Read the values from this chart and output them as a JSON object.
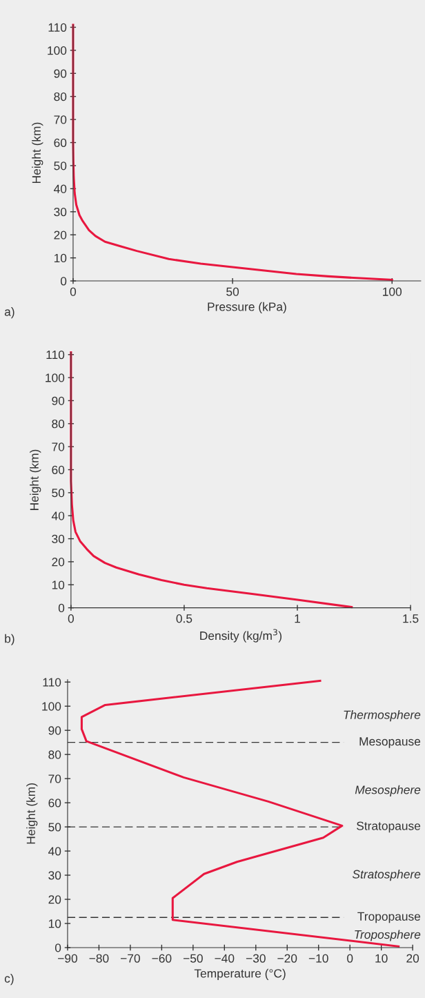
{
  "chart_data": [
    {
      "type": "line",
      "xlabel": "Pressure (kPa)",
      "ylabel": "Height (km)",
      "annotations": [
        "a)"
      ],
      "series": [
        {
          "color": "#e8173f",
          "x": [
            100,
            90,
            80,
            70,
            60,
            50,
            40,
            30,
            20,
            15,
            10,
            7,
            5,
            3,
            2,
            1,
            0.5,
            0.2,
            0.08,
            0,
            0
          ],
          "values": [
            0.5,
            1.2,
            2,
            3,
            4.5,
            6,
            7.5,
            9.5,
            13,
            15,
            17,
            19.5,
            22,
            26,
            28.5,
            33,
            38,
            45,
            52,
            60,
            111
          ]
        }
      ],
      "xlim": [
        0,
        109
      ],
      "xticks": [
        0,
        50,
        100
      ],
      "ylim": [
        0,
        111
      ],
      "yticks": [
        0,
        10,
        20,
        30,
        40,
        50,
        60,
        70,
        80,
        90,
        100,
        110
      ],
      "grid": false,
      "legend": false,
      "marker": "none",
      "line_style": "solid"
    },
    {
      "type": "line",
      "xlabel": "Density (kg/m$^{3}$)",
      "ylabel": "Height (km)",
      "annotations": [
        "b)"
      ],
      "series": [
        {
          "color": "#e8173f",
          "x": [
            1.24,
            1.0,
            0.8,
            0.6,
            0.5,
            0.4,
            0.3,
            0.2,
            0.15,
            0.1,
            0.07,
            0.04,
            0.02,
            0.01,
            0.004,
            0,
            0
          ],
          "values": [
            0.3,
            3.5,
            6,
            8.5,
            10,
            12,
            14.5,
            17.5,
            19.5,
            22.5,
            25.5,
            29,
            33,
            38,
            45,
            55,
            111
          ]
        }
      ],
      "xlim": [
        0,
        1.5
      ],
      "xticks": [
        0,
        0.5,
        1,
        1.5
      ],
      "ylim": [
        0,
        111
      ],
      "yticks": [
        0,
        10,
        20,
        30,
        40,
        50,
        60,
        70,
        80,
        90,
        100,
        110
      ],
      "grid": false,
      "legend": false,
      "marker": "none",
      "line_style": "solid"
    },
    {
      "type": "line",
      "xlabel": "Temperature (°C)",
      "ylabel": "Height (km)",
      "annotations": [
        "c)",
        "Thermosphere",
        "Mesosphere",
        "Stratosphere",
        "Troposphere"
      ],
      "series": [
        {
          "color": "#e8173f",
          "x": [
            15.5,
            -56.5,
            -56.5,
            -46.5,
            -36,
            -8.5,
            -2.5,
            -26,
            -53,
            -84,
            -85.5,
            -85.5,
            -78,
            -9.5
          ],
          "values": [
            0.5,
            11.5,
            20.5,
            30.5,
            35.5,
            45.5,
            50.5,
            60.5,
            70.5,
            85.5,
            90.5,
            95.5,
            100.5,
            110.5
          ]
        }
      ],
      "ref_lines": [
        {
          "axis": "y",
          "value": 85,
          "label": "Mesopause",
          "color": "#333333",
          "line_style": "dashed"
        },
        {
          "axis": "y",
          "value": 50,
          "label": "Stratopause",
          "color": "#333333",
          "line_style": "dashed"
        },
        {
          "axis": "y",
          "value": 12.5,
          "label": "Tropopause",
          "color": "#333333",
          "line_style": "dashed"
        }
      ],
      "xlim": [
        -90,
        20
      ],
      "xticks": [
        {
          "value": -90,
          "label": "−90"
        },
        {
          "value": -80,
          "label": "−80"
        },
        {
          "value": -70,
          "label": "−70"
        },
        {
          "value": -60,
          "label": "−60"
        },
        {
          "value": -50,
          "label": "−50"
        },
        {
          "value": -40,
          "label": "−40"
        },
        {
          "value": -30,
          "label": "−30"
        },
        {
          "value": -20,
          "label": "−20"
        },
        {
          "value": -10,
          "label": "−10"
        },
        0,
        10,
        20
      ],
      "ylim": [
        0,
        111
      ],
      "yticks": [
        0,
        10,
        20,
        30,
        40,
        50,
        60,
        70,
        80,
        90,
        100,
        110
      ],
      "grid": false,
      "legend": false,
      "marker": "none",
      "line_style": "solid"
    }
  ]
}
